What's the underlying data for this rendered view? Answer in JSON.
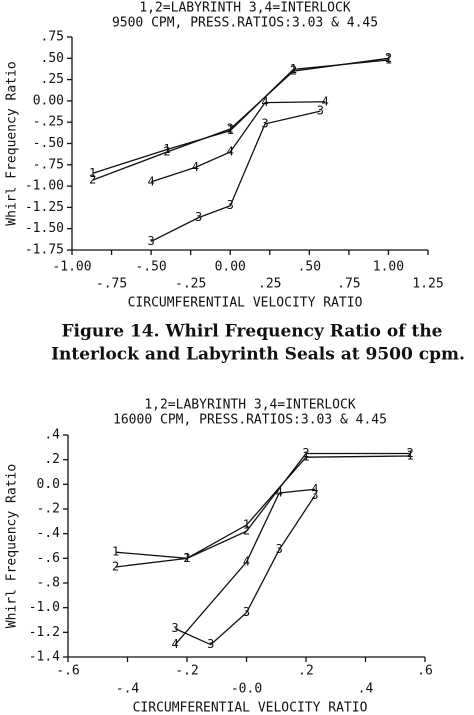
{
  "chart_data": [
    {
      "type": "line",
      "title": [
        "1,2=LABYRINTH 3,4=INTERLOCK",
        "9500 CPM, PRESS.RATIOS:3.03 & 4.45"
      ],
      "x_label": "CIRCUMFERENTIAL VELOCITY RATIO",
      "y_label": "Whirl Frequency Ratio",
      "xlim": [
        -1,
        1.25
      ],
      "ylim": [
        -1.75,
        0.75
      ],
      "xticks": [
        {
          "value": -1,
          "label": "-1.00"
        },
        {
          "value": -0.75,
          "label": "-.75"
        },
        {
          "value": -0.5,
          "label": "-.50"
        },
        {
          "value": -0.25,
          "label": "-.25"
        },
        {
          "value": 0,
          "label": "0.00"
        },
        {
          "value": 0.25,
          "label": ".25"
        },
        {
          "value": 0.5,
          "label": ".50"
        },
        {
          "value": 0.75,
          "label": ".75"
        },
        {
          "value": 1,
          "label": "1.00"
        },
        {
          "value": 1.25,
          "label": "1.25"
        }
      ],
      "yticks": [
        {
          "value": 0.75,
          "label": ".75"
        },
        {
          "value": 0.5,
          "label": ".50"
        },
        {
          "value": 0.25,
          "label": ".25"
        },
        {
          "value": 0,
          "label": "0.00"
        },
        {
          "value": -0.25,
          "label": "-.25"
        },
        {
          "value": -0.5,
          "label": "-.50"
        },
        {
          "value": -0.75,
          "label": "-.75"
        },
        {
          "value": -1,
          "label": "-1.00"
        },
        {
          "value": -1.25,
          "label": "-1.25"
        },
        {
          "value": -1.5,
          "label": "-1.50"
        },
        {
          "value": -1.75,
          "label": "-1.75"
        }
      ],
      "series": [
        {
          "name": "1",
          "color": "#111111",
          "x": [
            -0.87,
            -0.4,
            0,
            0.4,
            1.0
          ],
          "values": [
            -0.85,
            -0.57,
            -0.35,
            0.37,
            0.48
          ]
        },
        {
          "name": "2",
          "color": "#111111",
          "x": [
            -0.87,
            -0.4,
            0,
            0.4,
            1.0
          ],
          "values": [
            -0.93,
            -0.6,
            -0.33,
            0.35,
            0.5
          ]
        },
        {
          "name": "3",
          "color": "#111111",
          "x": [
            -0.5,
            -0.2,
            0,
            0.22,
            0.57
          ],
          "values": [
            -1.65,
            -1.37,
            -1.23,
            -0.27,
            -0.12
          ]
        },
        {
          "name": "4",
          "color": "#111111",
          "x": [
            -0.5,
            -0.22,
            0,
            0.22,
            0.6
          ],
          "values": [
            -0.95,
            -0.78,
            -0.6,
            -0.02,
            -0.01
          ]
        }
      ]
    },
    {
      "type": "line",
      "title": [
        "1,2=LABYRINTH 3,4=INTERLOCK",
        "16000 CPM, PRESS.RATIOS:3.03 & 4.45"
      ],
      "x_label": "CIRCUMFERENTIAL VELOCITY RATIO",
      "y_label": "Whirl Frequency Ratio",
      "xlim": [
        -0.6,
        0.6
      ],
      "ylim": [
        -1.4,
        0.4
      ],
      "xticks": [
        {
          "value": -0.6,
          "label": "-.6"
        },
        {
          "value": -0.4,
          "label": "-.4"
        },
        {
          "value": -0.2,
          "label": "-.2"
        },
        {
          "value": 0,
          "label": "-0.0"
        },
        {
          "value": 0.2,
          "label": ".2"
        },
        {
          "value": 0.4,
          "label": ".4"
        },
        {
          "value": 0.6,
          "label": ".6"
        }
      ],
      "yticks": [
        {
          "value": 0.4,
          "label": ".4"
        },
        {
          "value": 0.2,
          "label": ".2"
        },
        {
          "value": 0,
          "label": "0.0"
        },
        {
          "value": -0.2,
          "label": "-.2"
        },
        {
          "value": -0.4,
          "label": "-.4"
        },
        {
          "value": -0.6,
          "label": "-.6"
        },
        {
          "value": -0.8,
          "label": "-.8"
        },
        {
          "value": -1,
          "label": "-1.0"
        },
        {
          "value": -1.2,
          "label": "-1.2"
        },
        {
          "value": -1.4,
          "label": "-1.4"
        }
      ],
      "series": [
        {
          "name": "1",
          "color": "#111111",
          "x": [
            -0.44,
            -0.2,
            0,
            0.2,
            0.55
          ],
          "values": [
            -0.55,
            -0.6,
            -0.33,
            0.22,
            0.23
          ]
        },
        {
          "name": "2",
          "color": "#111111",
          "x": [
            -0.44,
            -0.2,
            0,
            0.2,
            0.55
          ],
          "values": [
            -0.67,
            -0.6,
            -0.38,
            0.25,
            0.25
          ]
        },
        {
          "name": "3",
          "color": "#111111",
          "x": [
            -0.24,
            -0.12,
            0,
            0.11,
            0.23
          ],
          "values": [
            -1.17,
            -1.3,
            -1.04,
            -0.53,
            -0.09
          ]
        },
        {
          "name": "4",
          "color": "#111111",
          "x": [
            -0.24,
            0,
            0.11,
            0.23
          ],
          "values": [
            -1.3,
            -0.63,
            -0.07,
            -0.04
          ]
        }
      ]
    }
  ],
  "caption": [
    "Figure 14. Whirl Frequency Ratio of the",
    "Interlock and Labyrinth Seals at 9500 cpm."
  ]
}
